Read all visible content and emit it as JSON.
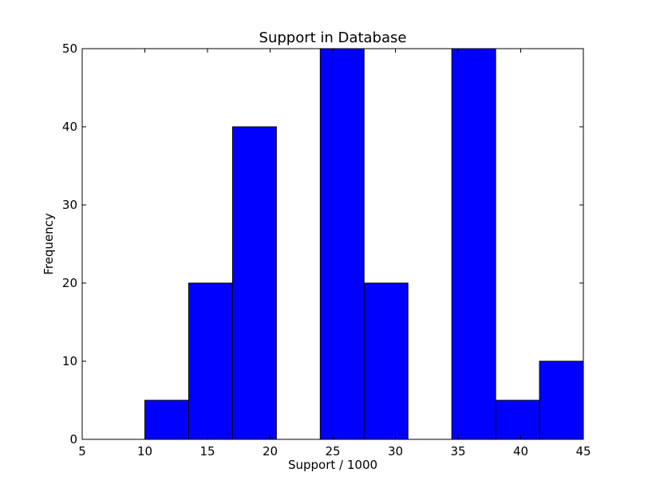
{
  "chart_data": {
    "type": "bar",
    "title": "Support in Database",
    "xlabel": "Support / 1000",
    "ylabel": "Frequency",
    "xlim": [
      5,
      45
    ],
    "ylim": [
      0,
      50
    ],
    "xticks": [
      5,
      10,
      15,
      20,
      25,
      30,
      35,
      40,
      45
    ],
    "yticks": [
      0,
      10,
      20,
      30,
      40,
      50
    ],
    "grid": false,
    "bar_color": "#0000ff",
    "edge_color": "#000000",
    "bins": [
      {
        "x0": 10.0,
        "x1": 13.5,
        "value": 5
      },
      {
        "x0": 13.5,
        "x1": 17.0,
        "value": 20
      },
      {
        "x0": 17.0,
        "x1": 20.5,
        "value": 40
      },
      {
        "x0": 20.5,
        "x1": 24.0,
        "value": 0
      },
      {
        "x0": 24.0,
        "x1": 27.5,
        "value": 50
      },
      {
        "x0": 27.5,
        "x1": 31.0,
        "value": 20
      },
      {
        "x0": 31.0,
        "x1": 34.5,
        "value": 0
      },
      {
        "x0": 34.5,
        "x1": 38.0,
        "value": 50
      },
      {
        "x0": 38.0,
        "x1": 41.5,
        "value": 5
      },
      {
        "x0": 41.5,
        "x1": 45.0,
        "value": 10
      }
    ]
  }
}
